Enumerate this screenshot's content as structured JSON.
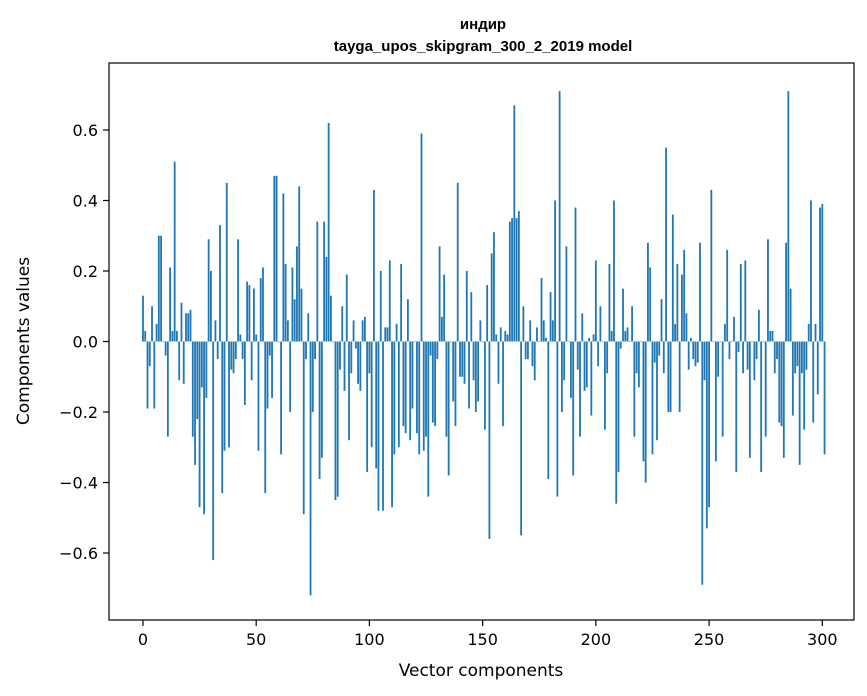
{
  "chart_data": {
    "type": "bar",
    "title": "индир",
    "subtitle": "tayga_upos_skipgram_300_2_2019 model",
    "xlabel": "Vector components",
    "ylabel": "Components values",
    "xlim": [
      -15,
      314
    ],
    "ylim": [
      -0.79,
      0.79
    ],
    "xticks": [
      0,
      50,
      100,
      150,
      200,
      250,
      300
    ],
    "yticks": [
      -0.6,
      -0.4,
      -0.2,
      0.0,
      0.2,
      0.4,
      0.6
    ],
    "ytick_labels": [
      "−0.6",
      "−0.4",
      "−0.2",
      "0.0",
      "0.2",
      "0.4",
      "0.6"
    ],
    "bar_color": "#1f77b4",
    "values": [
      0.13,
      0.03,
      -0.19,
      -0.07,
      0.1,
      -0.19,
      0.05,
      0.3,
      0.3,
      0.0,
      -0.04,
      -0.27,
      0.21,
      0.03,
      0.51,
      0.03,
      -0.11,
      0.11,
      -0.12,
      0.08,
      0.08,
      0.09,
      -0.27,
      -0.35,
      -0.22,
      -0.47,
      -0.13,
      -0.49,
      -0.16,
      0.29,
      0.2,
      -0.62,
      0.06,
      -0.05,
      0.33,
      -0.43,
      -0.31,
      0.45,
      -0.3,
      -0.08,
      -0.09,
      -0.05,
      0.29,
      0.02,
      -0.05,
      -0.18,
      0.17,
      0.16,
      -0.11,
      0.15,
      0.02,
      -0.31,
      0.18,
      0.21,
      -0.43,
      -0.19,
      -0.04,
      -0.16,
      0.47,
      0.47,
      0.0,
      -0.32,
      0.42,
      0.22,
      0.06,
      -0.2,
      0.21,
      0.12,
      0.27,
      0.44,
      0.15,
      -0.49,
      -0.05,
      0.08,
      -0.72,
      -0.2,
      -0.05,
      0.34,
      -0.39,
      -0.33,
      0.34,
      0.24,
      0.62,
      0.13,
      0.0,
      -0.45,
      -0.44,
      -0.08,
      0.1,
      -0.14,
      0.19,
      -0.28,
      -0.09,
      0.06,
      -0.02,
      -0.12,
      -0.14,
      0.06,
      0.07,
      -0.37,
      -0.09,
      -0.3,
      0.43,
      -0.36,
      -0.48,
      0.2,
      -0.48,
      0.04,
      0.04,
      0.23,
      -0.47,
      -0.32,
      0.05,
      -0.3,
      0.22,
      -0.24,
      -0.26,
      0.12,
      -0.28,
      -0.19,
      0.0,
      -0.26,
      -0.32,
      0.59,
      -0.31,
      -0.27,
      -0.44,
      -0.04,
      -0.23,
      -0.24,
      -0.05,
      0.27,
      0.07,
      0.19,
      -0.27,
      -0.38,
      0.0,
      -0.17,
      -0.24,
      0.45,
      -0.1,
      -0.1,
      -0.12,
      0.2,
      -0.19,
      0.14,
      -0.11,
      -0.2,
      -0.17,
      0.06,
      0.0,
      -0.25,
      0.16,
      -0.56,
      0.25,
      0.31,
      0.02,
      -0.12,
      0.04,
      -0.24,
      0.03,
      0.02,
      0.34,
      0.35,
      0.67,
      0.35,
      0.37,
      -0.55,
      0.1,
      -0.05,
      -0.05,
      0.06,
      -0.07,
      -0.11,
      0.04,
      0.0,
      0.18,
      0.06,
      0.01,
      -0.39,
      0.14,
      0.06,
      0.4,
      -0.44,
      0.71,
      -0.2,
      -0.11,
      0.27,
      0.0,
      -0.16,
      -0.38,
      0.38,
      -0.08,
      -0.27,
      0.08,
      -0.14,
      -0.13,
      0.01,
      -0.21,
      0.02,
      0.23,
      -0.07,
      0.1,
      0.0,
      -0.25,
      -0.09,
      0.22,
      0.03,
      0.4,
      -0.46,
      -0.37,
      -0.02,
      0.15,
      0.03,
      0.04,
      0.0,
      0.1,
      -0.27,
      -0.09,
      -0.13,
      0.0,
      -0.34,
      -0.4,
      0.28,
      0.21,
      -0.32,
      -0.06,
      -0.28,
      -0.04,
      0.12,
      -0.09,
      0.55,
      -0.2,
      -0.2,
      0.36,
      0.05,
      0.22,
      -0.2,
      0.19,
      0.26,
      0.08,
      -0.08,
      0.01,
      -0.05,
      -0.07,
      -0.06,
      0.28,
      -0.69,
      -0.11,
      -0.53,
      -0.47,
      0.43,
      0.0,
      -0.34,
      -0.1,
      0.0,
      -0.27,
      0.05,
      0.26,
      -0.05,
      0.0,
      0.07,
      -0.37,
      -0.03,
      0.22,
      -0.09,
      0.23,
      -0.08,
      -0.33,
      0.0,
      -0.11,
      -0.05,
      0.09,
      -0.37,
      0.0,
      -0.27,
      0.29,
      0.03,
      0.03,
      -0.09,
      -0.05,
      -0.23,
      -0.24,
      -0.33,
      0.28,
      0.71,
      0.15,
      -0.21,
      -0.09,
      -0.07,
      -0.35,
      -0.09,
      -0.25,
      -0.08,
      0.05,
      0.4,
      -0.23,
      0.05,
      -0.15,
      0.38,
      0.39,
      -0.32
    ]
  }
}
